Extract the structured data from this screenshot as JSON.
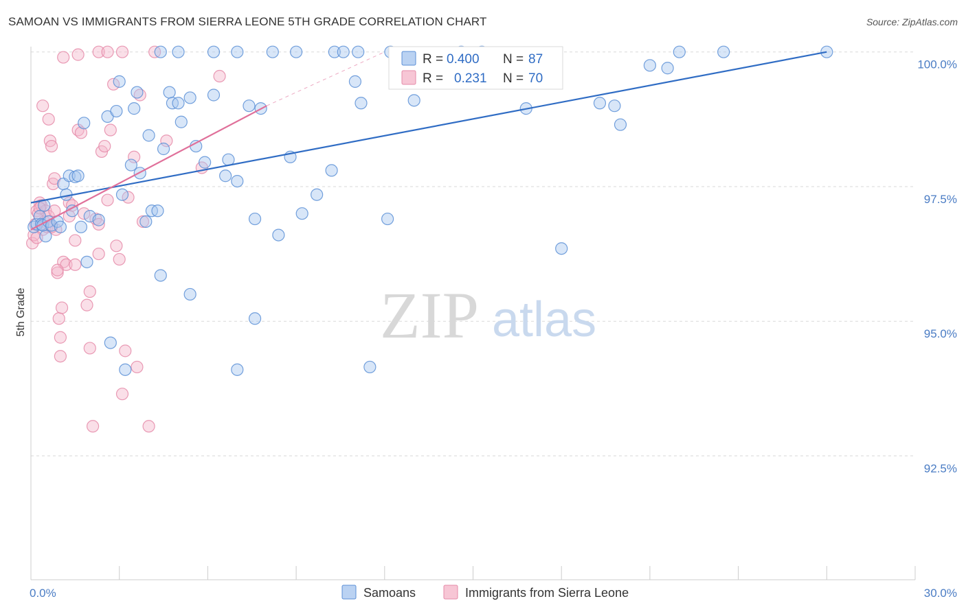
{
  "title": "SAMOAN VS IMMIGRANTS FROM SIERRA LEONE 5TH GRADE CORRELATION CHART",
  "source": "Source: ZipAtlas.com",
  "watermark": {
    "zip": "ZIP",
    "atlas": "atlas"
  },
  "colors": {
    "blue_fill": "#a9c7ef",
    "blue_stroke": "#5b8fd6",
    "blue_line": "#2f6cc4",
    "pink_fill": "#f5b8cb",
    "pink_stroke": "#e58aa8",
    "pink_line": "#e0709a",
    "grid": "#d9d9d9",
    "tick_label": "#4a7cc4"
  },
  "legend": {
    "rows": [
      {
        "r_label": "R =",
        "r_value": "0.400",
        "n_label": "N =",
        "n_value": "87"
      },
      {
        "r_label": "R =",
        "r_value": "0.231",
        "n_label": "N =",
        "n_value": "70"
      }
    ]
  },
  "bottom_legend": [
    "Samoans",
    "Immigrants from Sierra Leone"
  ],
  "chart_data": {
    "type": "scatter",
    "title": "SAMOAN VS IMMIGRANTS FROM SIERRA LEONE 5TH GRADE CORRELATION CHART",
    "xlabel": "",
    "ylabel": "5th Grade",
    "xlim": [
      0,
      30
    ],
    "ylim": [
      90.2,
      100.2
    ],
    "x_tick_labels": [
      {
        "v": 0,
        "label": "0.0%"
      },
      {
        "v": 30,
        "label": "30.0%"
      }
    ],
    "y_ticks": [
      {
        "v": 100,
        "label": "100.0%"
      },
      {
        "v": 97.5,
        "label": "97.5%"
      },
      {
        "v": 95,
        "label": "95.0%"
      },
      {
        "v": 92.5,
        "label": "92.5%"
      }
    ],
    "series": [
      {
        "name": "Samoans",
        "r": 0.4,
        "n": 87,
        "trend": [
          [
            0,
            97.2
          ],
          [
            27,
            100
          ]
        ],
        "points": [
          [
            0.1,
            96.75
          ],
          [
            0.2,
            96.8
          ],
          [
            0.3,
            96.95
          ],
          [
            0.35,
            96.8
          ],
          [
            0.4,
            96.78
          ],
          [
            0.45,
            97.15
          ],
          [
            0.5,
            96.58
          ],
          [
            0.6,
            96.85
          ],
          [
            0.7,
            96.78
          ],
          [
            0.9,
            96.85
          ],
          [
            1.0,
            96.75
          ],
          [
            1.1,
            97.55
          ],
          [
            1.2,
            97.35
          ],
          [
            1.3,
            97.7
          ],
          [
            1.4,
            97.05
          ],
          [
            1.5,
            97.68
          ],
          [
            1.7,
            96.75
          ],
          [
            1.9,
            96.1
          ],
          [
            2.0,
            96.95
          ],
          [
            2.3,
            96.88
          ],
          [
            1.8,
            98.68
          ],
          [
            1.6,
            97.7
          ],
          [
            2.6,
            98.8
          ],
          [
            2.9,
            98.9
          ],
          [
            3.1,
            97.35
          ],
          [
            3.4,
            97.9
          ],
          [
            3.7,
            97.75
          ],
          [
            3.6,
            99.25
          ],
          [
            3.5,
            98.95
          ],
          [
            3.9,
            96.85
          ],
          [
            4.0,
            98.45
          ],
          [
            4.1,
            97.05
          ],
          [
            4.3,
            97.05
          ],
          [
            4.4,
            95.85
          ],
          [
            4.5,
            98.2
          ],
          [
            4.7,
            99.25
          ],
          [
            4.8,
            99.05
          ],
          [
            5.0,
            99.05
          ],
          [
            5.1,
            98.7
          ],
          [
            5.4,
            99.15
          ],
          [
            5.6,
            98.25
          ],
          [
            5.9,
            97.95
          ],
          [
            6.2,
            99.2
          ],
          [
            6.6,
            97.7
          ],
          [
            6.7,
            98.0
          ],
          [
            7.0,
            97.6
          ],
          [
            7.4,
            99.0
          ],
          [
            7.6,
            96.9
          ],
          [
            7.8,
            98.95
          ],
          [
            8.4,
            96.6
          ],
          [
            8.8,
            98.05
          ],
          [
            9.2,
            97.0
          ],
          [
            9.7,
            97.35
          ],
          [
            10.2,
            97.8
          ],
          [
            11.0,
            99.45
          ],
          [
            11.2,
            99.05
          ],
          [
            12.1,
            96.9
          ],
          [
            13.0,
            99.1
          ],
          [
            16.8,
            98.95
          ],
          [
            18.0,
            96.35
          ],
          [
            19.3,
            99.05
          ],
          [
            19.8,
            99.0
          ],
          [
            20.0,
            98.65
          ],
          [
            21.0,
            99.75
          ],
          [
            21.6,
            99.7
          ],
          [
            22.0,
            100.0
          ],
          [
            23.5,
            100.0
          ],
          [
            27.0,
            100.0
          ],
          [
            4.4,
            100.0
          ],
          [
            5.0,
            100.0
          ],
          [
            6.2,
            100.0
          ],
          [
            7.0,
            100.0
          ],
          [
            8.2,
            100.0
          ],
          [
            9.0,
            100.0
          ],
          [
            10.3,
            100.0
          ],
          [
            10.6,
            100.0
          ],
          [
            11.1,
            100.0
          ],
          [
            12.2,
            100.0
          ],
          [
            14.6,
            100.0
          ],
          [
            15.3,
            100.0
          ],
          [
            3.0,
            99.45
          ],
          [
            2.7,
            94.6
          ],
          [
            3.2,
            94.1
          ],
          [
            5.4,
            95.5
          ],
          [
            7.0,
            94.1
          ],
          [
            7.6,
            95.05
          ],
          [
            11.5,
            94.15
          ]
        ]
      },
      {
        "name": "Immigrants from Sierra Leone",
        "r": 0.231,
        "n": 70,
        "trend": [
          [
            0,
            96.7
          ],
          [
            8,
            99.0
          ]
        ],
        "trend_extension": [
          [
            8,
            99.0
          ],
          [
            12,
            100.0
          ]
        ],
        "points": [
          [
            0.05,
            96.45
          ],
          [
            0.1,
            96.6
          ],
          [
            0.15,
            96.8
          ],
          [
            0.2,
            97.05
          ],
          [
            0.25,
            97.0
          ],
          [
            0.3,
            97.2
          ],
          [
            0.35,
            97.15
          ],
          [
            0.4,
            96.7
          ],
          [
            0.45,
            96.85
          ],
          [
            0.5,
            97.05
          ],
          [
            0.55,
            96.75
          ],
          [
            0.6,
            98.75
          ],
          [
            0.65,
            98.35
          ],
          [
            0.7,
            98.25
          ],
          [
            0.75,
            97.55
          ],
          [
            0.8,
            97.65
          ],
          [
            0.85,
            96.7
          ],
          [
            0.9,
            95.9
          ],
          [
            0.95,
            95.05
          ],
          [
            1.0,
            94.7
          ],
          [
            1.05,
            95.25
          ],
          [
            1.1,
            96.1
          ],
          [
            1.2,
            96.05
          ],
          [
            1.3,
            97.2
          ],
          [
            1.4,
            97.15
          ],
          [
            1.5,
            96.5
          ],
          [
            1.6,
            98.55
          ],
          [
            1.7,
            98.5
          ],
          [
            1.8,
            97.0
          ],
          [
            1.9,
            95.3
          ],
          [
            2.0,
            94.5
          ],
          [
            2.1,
            93.05
          ],
          [
            2.2,
            96.9
          ],
          [
            2.3,
            96.8
          ],
          [
            2.4,
            98.15
          ],
          [
            2.5,
            98.25
          ],
          [
            2.6,
            97.25
          ],
          [
            2.7,
            98.55
          ],
          [
            2.8,
            99.4
          ],
          [
            2.9,
            96.4
          ],
          [
            3.0,
            96.15
          ],
          [
            3.1,
            93.65
          ],
          [
            3.2,
            94.45
          ],
          [
            3.3,
            97.3
          ],
          [
            3.5,
            98.05
          ],
          [
            3.6,
            94.15
          ],
          [
            3.7,
            99.2
          ],
          [
            3.8,
            96.85
          ],
          [
            4.0,
            93.05
          ],
          [
            4.6,
            98.35
          ],
          [
            5.8,
            97.85
          ],
          [
            6.4,
            99.55
          ],
          [
            4.2,
            100.0
          ],
          [
            2.3,
            100.0
          ],
          [
            1.6,
            99.95
          ],
          [
            2.6,
            100.0
          ],
          [
            3.1,
            100.0
          ],
          [
            1.1,
            99.9
          ],
          [
            0.4,
            99.0
          ],
          [
            0.6,
            96.95
          ],
          [
            0.9,
            95.95
          ],
          [
            1.5,
            96.05
          ],
          [
            2.0,
            95.55
          ],
          [
            2.3,
            96.25
          ],
          [
            0.2,
            96.55
          ],
          [
            0.3,
            97.1
          ],
          [
            0.7,
            96.75
          ],
          [
            1.0,
            94.35
          ],
          [
            1.3,
            96.95
          ],
          [
            0.8,
            97.05
          ]
        ]
      }
    ]
  }
}
